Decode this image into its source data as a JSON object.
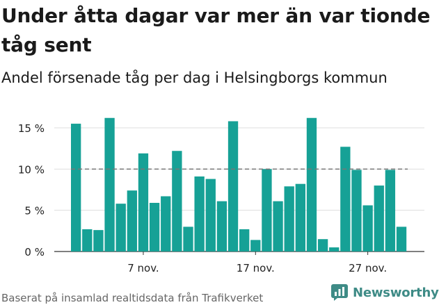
{
  "title": "Under åtta dagar var mer än var tionde tåg sent",
  "subtitle": "Andel försenade tåg per dag i Helsingborgs kommun",
  "source": "Baserat på insamlad realtidsdata från Trafikverket",
  "brand": {
    "name": "Newsworthy",
    "icon": "newsworthy-logo-icon",
    "color": "#3e8b86"
  },
  "colors": {
    "bar": "#16a196",
    "grid": "#dddddd",
    "reference_line": "#777777",
    "axis_text": "#222222"
  },
  "chart_data": {
    "type": "bar",
    "categories": [
      "1 nov.",
      "2 nov.",
      "3 nov.",
      "4 nov.",
      "5 nov.",
      "6 nov.",
      "7 nov.",
      "8 nov.",
      "9 nov.",
      "10 nov.",
      "11 nov.",
      "12 nov.",
      "13 nov.",
      "14 nov.",
      "15 nov.",
      "16 nov.",
      "17 nov.",
      "18 nov.",
      "19 nov.",
      "20 nov.",
      "21 nov.",
      "22 nov.",
      "23 nov.",
      "24 nov.",
      "25 nov.",
      "26 nov.",
      "27 nov.",
      "28 nov.",
      "29 nov.",
      "30 nov."
    ],
    "values": [
      15.5,
      2.7,
      2.6,
      16.2,
      5.8,
      7.4,
      11.9,
      5.9,
      6.7,
      12.2,
      3.0,
      9.1,
      8.8,
      6.1,
      15.8,
      2.7,
      1.4,
      10.0,
      6.1,
      7.9,
      8.2,
      16.2,
      1.5,
      0.5,
      12.7,
      9.9,
      5.6,
      8.0,
      9.9,
      3.0
    ],
    "x_tick_labels": [
      {
        "label": "7 nov.",
        "index": 6
      },
      {
        "label": "17 nov.",
        "index": 16
      },
      {
        "label": "27 nov.",
        "index": 26
      }
    ],
    "y_ticks": [
      {
        "label": "0 %",
        "value": 0
      },
      {
        "label": "5 %",
        "value": 5
      },
      {
        "label": "10 %",
        "value": 10
      },
      {
        "label": "15 %",
        "value": 15
      }
    ],
    "ylim": [
      0,
      16.6
    ],
    "reference_line": 10,
    "grid": true
  }
}
